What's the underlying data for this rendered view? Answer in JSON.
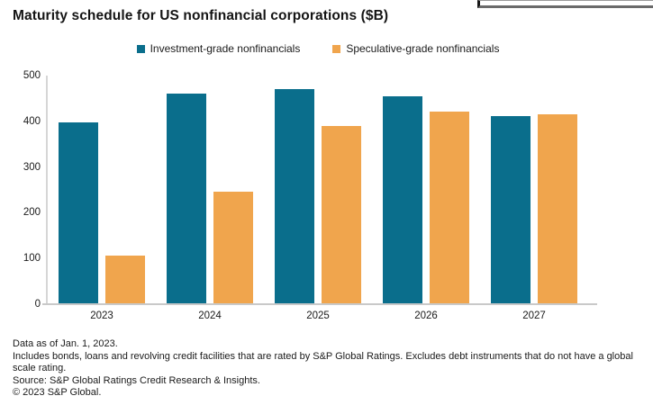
{
  "title": "Maturity schedule for US nonfinancial corporations ($B)",
  "window_fragment": {
    "description": "bottom-left corner of a cropped window frame"
  },
  "chart_data": {
    "type": "bar",
    "title": "Maturity schedule for US nonfinancial corporations ($B)",
    "categories": [
      "2023",
      "2024",
      "2025",
      "2026",
      "2027"
    ],
    "series": [
      {
        "name": "Investment-grade nonfinancials",
        "color": "#0a6e8c",
        "values": [
          397,
          461,
          471,
          455,
          412
        ]
      },
      {
        "name": "Speculative-grade nonfinancials",
        "color": "#f0a54d",
        "values": [
          106,
          246,
          389,
          421,
          415
        ]
      }
    ],
    "ylim": [
      0,
      500
    ],
    "yticks": [
      0,
      100,
      200,
      300,
      400,
      500
    ],
    "grid": false,
    "legend_position": "top-center",
    "axis_color": "#c9c9c9"
  },
  "footer": {
    "line1": "Data as of Jan. 1, 2023.",
    "line2": "Includes bonds, loans and revolving credit facilities that are rated by S&P Global Ratings. Excludes debt instruments that do not have a global scale rating.",
    "line3": "Source: S&P Global Ratings Credit Research & Insights.",
    "line4": "© 2023 S&P Global."
  }
}
